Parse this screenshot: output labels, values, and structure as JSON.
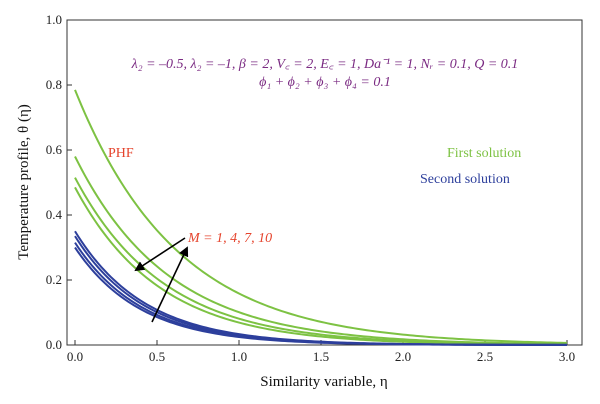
{
  "chart_data": {
    "type": "line",
    "xlabel": "Similarity variable, η",
    "ylabel": "Temperature profile, θ (η)",
    "xlim": [
      0.0,
      3.0
    ],
    "ylim": [
      0.0,
      1.0
    ],
    "x_ticks": [
      "0.0",
      "0.5",
      "1.0",
      "1.5",
      "2.0",
      "2.5",
      "3.0"
    ],
    "y_ticks": [
      "0.0",
      "0.2",
      "0.4",
      "0.6",
      "0.8",
      "1.0"
    ],
    "params_line1": "λ₂ = –0.5, λ₂ = –1, β = 2, V꜀ = 2, E꜀ = 1, Da⁻¹ = 1, Nᵣ = 0.1, Q = 0.1",
    "params_line2": "ϕ₁ + ϕ₂ + ϕ₃ + ϕ₄ = 0.1",
    "annotation_phf": "PHF",
    "annotation_m": "M = 1, 4, 7, 10",
    "legend": [
      {
        "label": "First solution",
        "color": "#7dc243"
      },
      {
        "label": "Second solution",
        "color": "#2d3f9c"
      }
    ],
    "colors": {
      "first": "#7dc243",
      "second": "#2d3f9c",
      "params": "#7a2a82",
      "annotation": "#e5432c"
    },
    "series": [
      {
        "group": "first",
        "M": 1,
        "theta0": 0.785,
        "decay": 1.6
      },
      {
        "group": "first",
        "M": 4,
        "theta0": 0.58,
        "decay": 1.75
      },
      {
        "group": "first",
        "M": 7,
        "theta0": 0.515,
        "decay": 1.85
      },
      {
        "group": "first",
        "M": 10,
        "theta0": 0.485,
        "decay": 1.95
      },
      {
        "group": "second",
        "M": 1,
        "theta0": 0.35,
        "decay": 2.35
      },
      {
        "group": "second",
        "M": 4,
        "theta0": 0.335,
        "decay": 2.4
      },
      {
        "group": "second",
        "M": 7,
        "theta0": 0.315,
        "decay": 2.45
      },
      {
        "group": "second",
        "M": 10,
        "theta0": 0.3,
        "decay": 2.5
      }
    ]
  }
}
